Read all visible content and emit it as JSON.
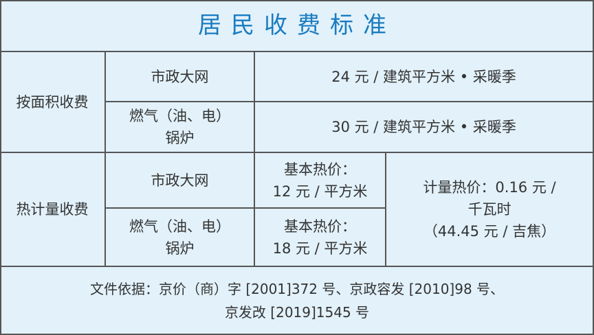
{
  "title": "居民收费标准",
  "area": {
    "label": "按面积收费",
    "rows": [
      {
        "type": "市政大网",
        "price": "24 元 / 建筑平方米 • 采暖季"
      },
      {
        "type": "燃气（油、电）\n锅炉",
        "price": "30 元 / 建筑平方米 • 采暖季"
      }
    ]
  },
  "meter": {
    "label": "热计量收费",
    "rows": [
      {
        "type": "市政大网",
        "base_label": "基本热价：",
        "base_price": "12 元 / 平方米"
      },
      {
        "type": "燃气（油、电）\n锅炉",
        "base_label": "基本热价：",
        "base_price": "18 元 / 平方米"
      }
    ],
    "metered_line1": "计量热价：0.16 元 /",
    "metered_line2": "千瓦时",
    "metered_line3": "（44.45 元 / 吉焦）"
  },
  "footer": {
    "line1": "文件依据：京价（商）字 [2001]372 号、京政容发 [2010]98 号、",
    "line2": "京发改 [2019]1545 号"
  }
}
